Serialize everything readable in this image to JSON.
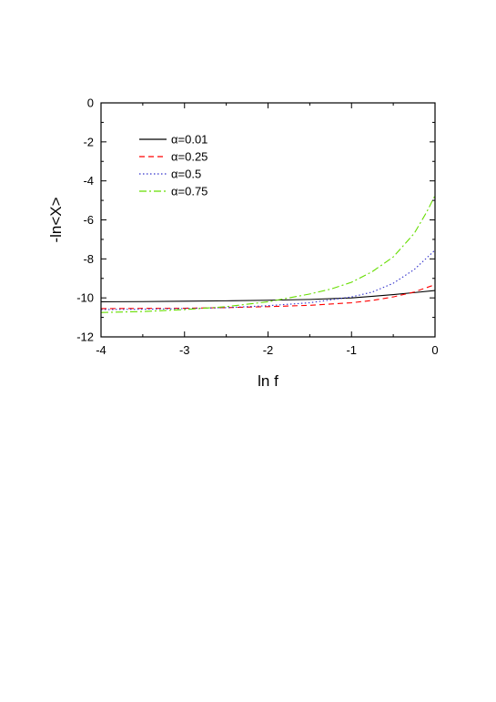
{
  "chart_data": {
    "type": "line",
    "title": "",
    "xlabel": "ln f",
    "ylabel": "-ln<X>",
    "xlim": [
      -4,
      0
    ],
    "ylim": [
      -12,
      0
    ],
    "xticks": [
      -4,
      -3,
      -2,
      -1,
      0
    ],
    "yticks": [
      0,
      -2,
      -4,
      -6,
      -8,
      -10,
      -12
    ],
    "grid": false,
    "legend_position": "top-left",
    "series": [
      {
        "name": "α=0.01",
        "color": "#000000",
        "line_style": "solid",
        "x": [
          -4.0,
          -3.5,
          -3.0,
          -2.5,
          -2.0,
          -1.5,
          -1.0,
          -0.75,
          -0.5,
          -0.25,
          0.0
        ],
        "y": [
          -10.2,
          -10.19,
          -10.17,
          -10.15,
          -10.12,
          -10.08,
          -10.0,
          -9.92,
          -9.83,
          -9.73,
          -9.62
        ]
      },
      {
        "name": "α=0.25",
        "color": "#ff0000",
        "line_style": "dashed",
        "x": [
          -4.0,
          -3.5,
          -3.0,
          -2.5,
          -2.0,
          -1.5,
          -1.0,
          -0.75,
          -0.5,
          -0.25,
          0.0
        ],
        "y": [
          -10.55,
          -10.54,
          -10.53,
          -10.5,
          -10.45,
          -10.38,
          -10.25,
          -10.13,
          -9.95,
          -9.7,
          -9.32
        ]
      },
      {
        "name": "α=0.5",
        "color": "#3333cc",
        "line_style": "dotted",
        "x": [
          -4.0,
          -3.5,
          -3.0,
          -2.5,
          -2.0,
          -1.5,
          -1.0,
          -0.75,
          -0.5,
          -0.25,
          0.0
        ],
        "y": [
          -10.6,
          -10.58,
          -10.55,
          -10.5,
          -10.4,
          -10.25,
          -9.95,
          -9.7,
          -9.25,
          -8.55,
          -7.55
        ]
      },
      {
        "name": "α=0.75",
        "color": "#66dd00",
        "line_style": "dash-dot",
        "x": [
          -4.0,
          -3.5,
          -3.0,
          -2.5,
          -2.0,
          -1.75,
          -1.5,
          -1.25,
          -1.0,
          -0.75,
          -0.5,
          -0.25,
          -0.1,
          0.0
        ],
        "y": [
          -10.75,
          -10.7,
          -10.6,
          -10.45,
          -10.2,
          -10.0,
          -9.8,
          -9.55,
          -9.2,
          -8.65,
          -7.9,
          -6.7,
          -5.6,
          -4.75
        ]
      }
    ]
  }
}
